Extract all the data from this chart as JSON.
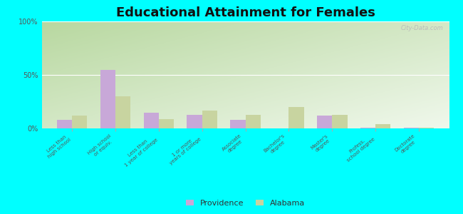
{
  "title": "Educational Attainment for Females",
  "categories": [
    "Less than\nhigh school",
    "High school\nor equiv.",
    "Less than\n1 year of college",
    "1 or more\nyears of college",
    "Associate\ndegree",
    "Bachelor's\ndegree",
    "Master's\ndegree",
    "Profess.\nschool degree",
    "Doctorate\ndegree"
  ],
  "providence_values": [
    8,
    55,
    15,
    13,
    8,
    0,
    12,
    0.5,
    1
  ],
  "alabama_values": [
    12,
    30,
    9,
    17,
    13,
    20,
    13,
    4,
    1
  ],
  "providence_color": "#c8a8d8",
  "alabama_color": "#c8d4a0",
  "ylim": [
    0,
    100
  ],
  "yticks": [
    0,
    50,
    100
  ],
  "ytick_labels": [
    "0%",
    "50%",
    "100%"
  ],
  "bar_width": 0.35,
  "title_fontsize": 13,
  "legend_labels": [
    "Providence",
    "Alabama"
  ],
  "watermark": "City-Data.com",
  "background_color": "#00ffff"
}
